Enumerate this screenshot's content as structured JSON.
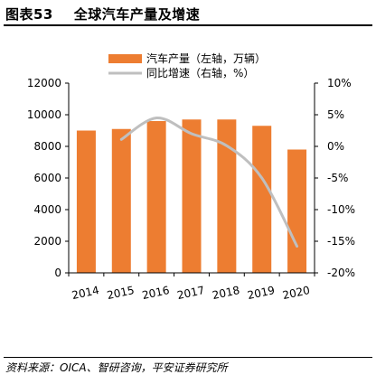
{
  "header": {
    "title": "图表53    全球汽车产量及增速"
  },
  "source": "资料来源：OICA、智研咨询，平安证券研究所",
  "colors": {
    "bar": "#ED7D31",
    "line": "#BFBFBF"
  },
  "chart_data": {
    "type": "bar",
    "categories": [
      "2014",
      "2015",
      "2016",
      "2017",
      "2018",
      "2019",
      "2020"
    ],
    "series": [
      {
        "name": "汽车产量（左轴，万辆）",
        "type": "bar",
        "axis": "left",
        "values": [
          9000,
          9100,
          9600,
          9700,
          9700,
          9300,
          7800
        ]
      },
      {
        "name": "同比增速（右轴，%）",
        "type": "line",
        "axis": "right",
        "values": [
          null,
          1.1,
          4.5,
          2.0,
          0.1,
          -5.0,
          -15.8
        ]
      }
    ],
    "left_axis": {
      "ticks": [
        "0",
        "2000",
        "4000",
        "6000",
        "8000",
        "10000",
        "12000"
      ],
      "ylim": [
        0,
        12000
      ]
    },
    "right_axis": {
      "ticks": [
        "-20%",
        "-15%",
        "-10%",
        "-5%",
        "0%",
        "5%",
        "10%"
      ],
      "ylim": [
        -20,
        10
      ]
    },
    "legend_position": "top-right"
  }
}
